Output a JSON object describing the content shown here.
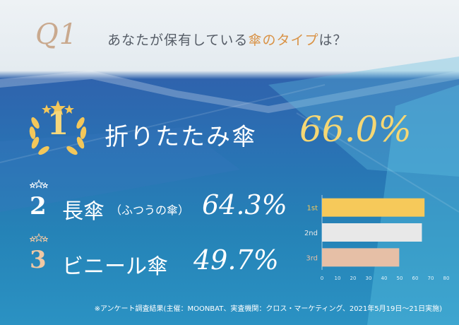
{
  "question": {
    "mark": "Q1",
    "text_before": "あなたが保有している",
    "text_highlight": "傘のタイプ",
    "text_after": "は？"
  },
  "ranking": [
    {
      "rank": "1",
      "label": "折りたたみ傘",
      "sub": "",
      "value": "66.0%"
    },
    {
      "rank": "2",
      "label": "長傘",
      "sub": "（ふつうの傘）",
      "value": "64.3%"
    },
    {
      "rank": "3",
      "label": "ビニール傘",
      "sub": "",
      "value": "49.7%"
    }
  ],
  "colors": {
    "gold": "#f6d77b",
    "silver": "#e8e8e8",
    "bronze": "#e6bfa6",
    "highlight": "#d99245"
  },
  "chart_data": {
    "type": "bar",
    "orientation": "horizontal",
    "categories": [
      "1st",
      "2nd",
      "3rd"
    ],
    "values": [
      66.0,
      64.3,
      49.7
    ],
    "colors": [
      "#f6c95a",
      "#e8e8e8",
      "#e6bfa6"
    ],
    "xlim": [
      0,
      80
    ],
    "xticks": [
      "0",
      "10",
      "20",
      "30",
      "40",
      "50",
      "60",
      "70",
      "80"
    ],
    "title": "",
    "xlabel": "",
    "ylabel": ""
  },
  "footnote": "※アンケート調査結果(主催：MOONBAT、実査機関：クロス・マーケティング、2021年5月19日〜21日実施)"
}
